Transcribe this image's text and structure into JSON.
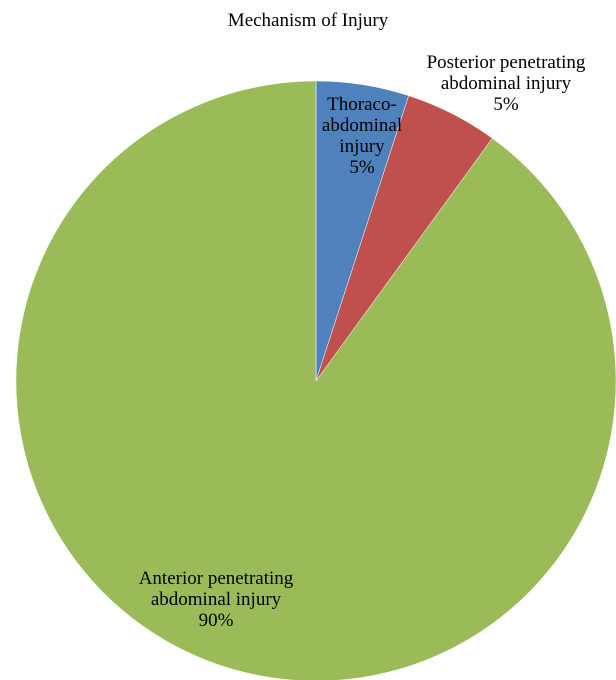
{
  "chart_data": {
    "type": "pie",
    "title": "Mechanism of Injury",
    "start_angle_deg": 0,
    "direction": "clockwise",
    "slices": [
      {
        "label_lines": [
          "Thoraco-",
          "abdominal",
          "injury"
        ],
        "percent_label": "5%",
        "value": 5,
        "color": "#4F81BD"
      },
      {
        "label_lines": [
          "Posterior penetrating",
          "abdominal injury"
        ],
        "percent_label": "5%",
        "value": 5,
        "color": "#C0504D"
      },
      {
        "label_lines": [
          "Anterior penetrating",
          "abdominal injury"
        ],
        "percent_label": "90%",
        "value": 90,
        "color": "#9BBB59"
      }
    ],
    "legend": "none"
  }
}
